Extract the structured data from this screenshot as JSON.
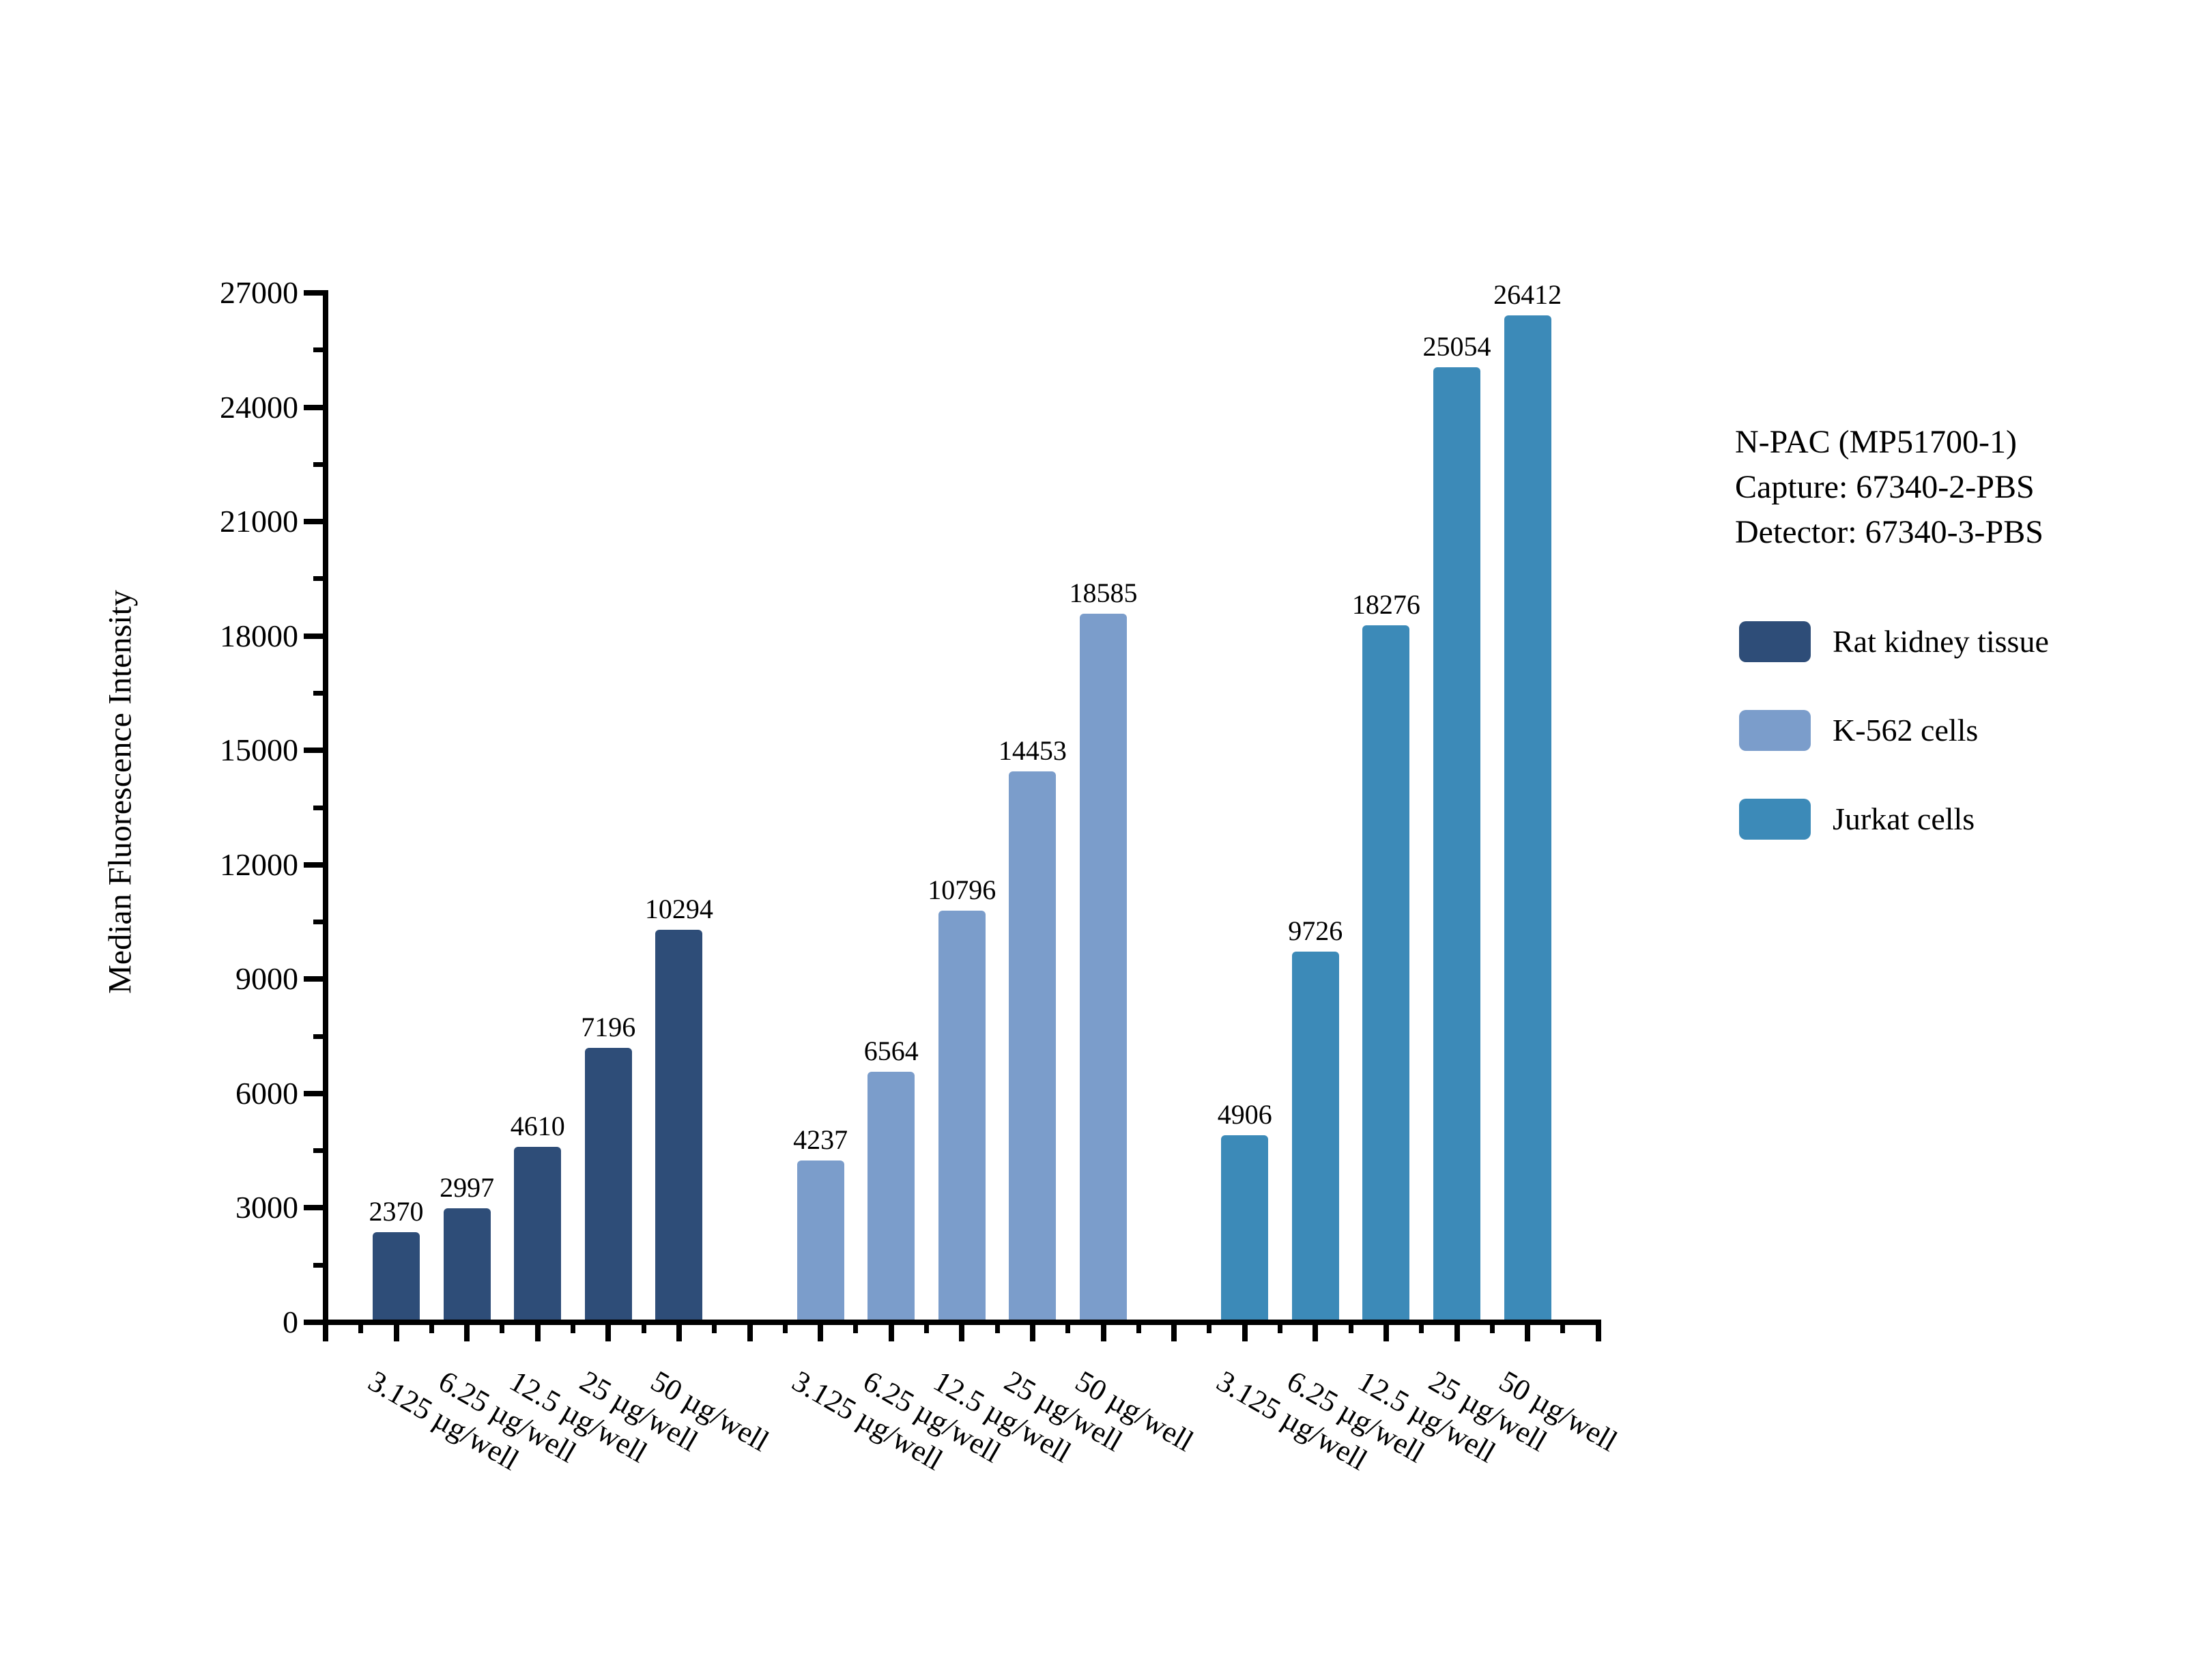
{
  "chart_data": {
    "type": "bar",
    "title": "",
    "ylabel": "Median Fluorescence Intensity",
    "xlabel": "",
    "ylim": [
      0,
      27000
    ],
    "yticks_major": [
      0,
      3000,
      6000,
      9000,
      12000,
      15000,
      18000,
      21000,
      24000,
      27000
    ],
    "yticks_minor_step": 1500,
    "categories": [
      "3.125 µg/well",
      "6.25 µg/well",
      "12.5 µg/well",
      "25 µg/well",
      "50 µg/well"
    ],
    "series": [
      {
        "name": "Rat kidney tissue",
        "color": "#2E4D78",
        "values": [
          2370,
          2997,
          4610,
          7196,
          10294
        ]
      },
      {
        "name": "K-562 cells",
        "color": "#7B9DCB",
        "values": [
          4237,
          6564,
          10796,
          14453,
          18585
        ]
      },
      {
        "name": "Jurkat cells",
        "color": "#3C8AB8",
        "values": [
          4906,
          9726,
          18276,
          25054,
          26412
        ]
      }
    ],
    "bar_value_labels": true,
    "legend_position": "right",
    "grid": false,
    "axis_color": "#000000",
    "background": "#FFFFFF",
    "annotation": {
      "lines": [
        "N-PAC (MP51700-1)",
        "Capture: 67340-2-PBS",
        "Detector: 67340-3-PBS"
      ]
    }
  }
}
